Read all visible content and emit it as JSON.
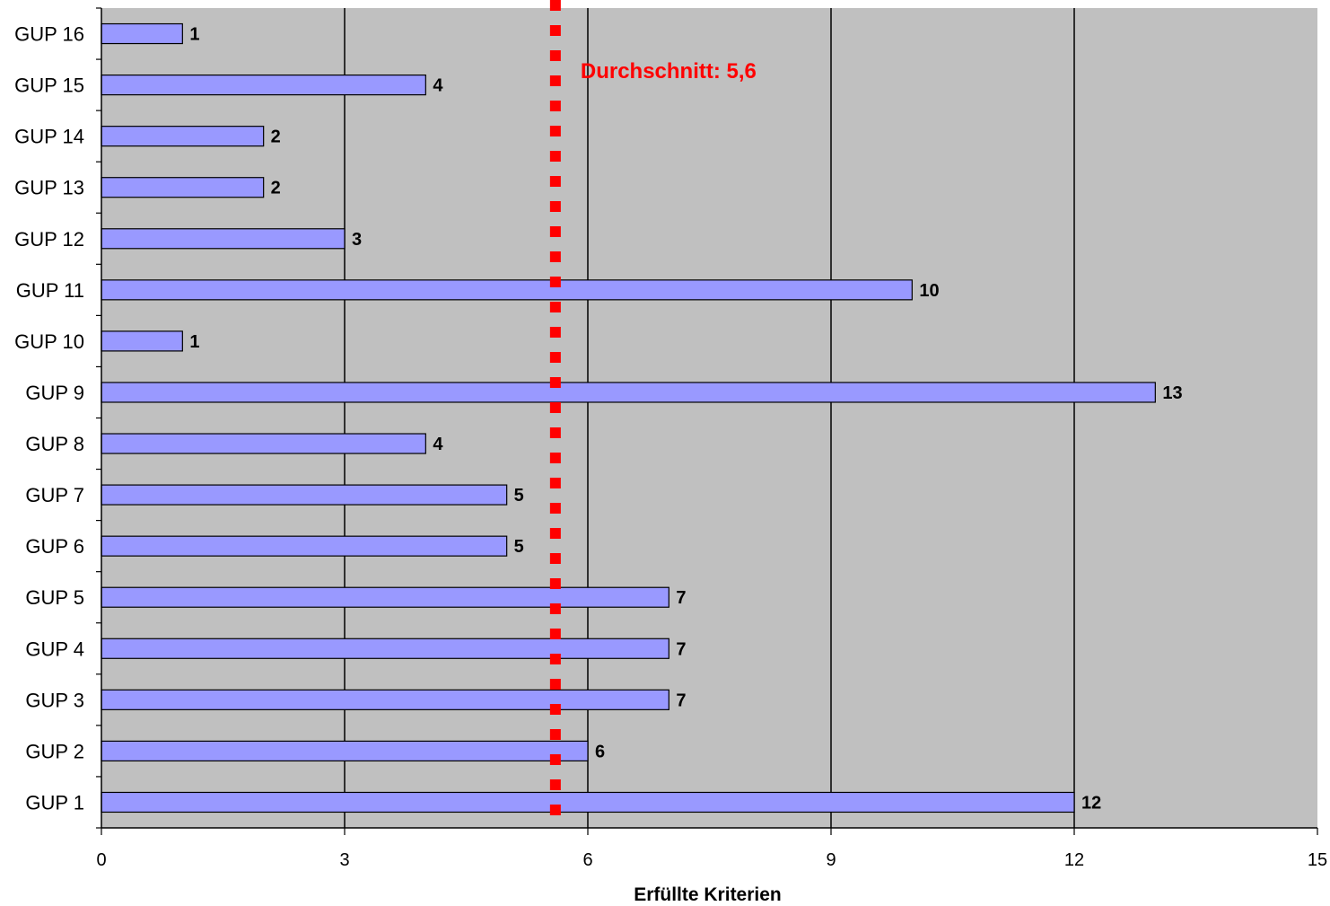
{
  "chart_data": {
    "type": "bar",
    "orientation": "horizontal",
    "categories": [
      "GUP 1",
      "GUP 2",
      "GUP 3",
      "GUP 4",
      "GUP 5",
      "GUP 6",
      "GUP 7",
      "GUP 8",
      "GUP 9",
      "GUP 10",
      "GUP 11",
      "GUP 12",
      "GUP 13",
      "GUP 14",
      "GUP 15",
      "GUP 16"
    ],
    "values": [
      12,
      6,
      7,
      7,
      7,
      5,
      5,
      4,
      13,
      1,
      10,
      3,
      2,
      2,
      4,
      1
    ],
    "title": "",
    "xlabel": "Erfüllte Kriterien",
    "ylabel": "",
    "xlim": [
      0,
      15
    ],
    "xticks": [
      0,
      3,
      6,
      9,
      12,
      15
    ],
    "grid": "vertical lines at x ticks",
    "legend": "none",
    "data_labels": true,
    "reference_line": {
      "value": 5.6,
      "style": "dotted",
      "label": "Durchschnitt: 5,6"
    },
    "colors": {
      "bar_fill": "#9999ff",
      "bar_stroke": "#000000",
      "plot_background": "#c0c0c0",
      "gridline": "#000000",
      "reference_line": "#ff0000",
      "reference_label": "#ff0000"
    }
  }
}
